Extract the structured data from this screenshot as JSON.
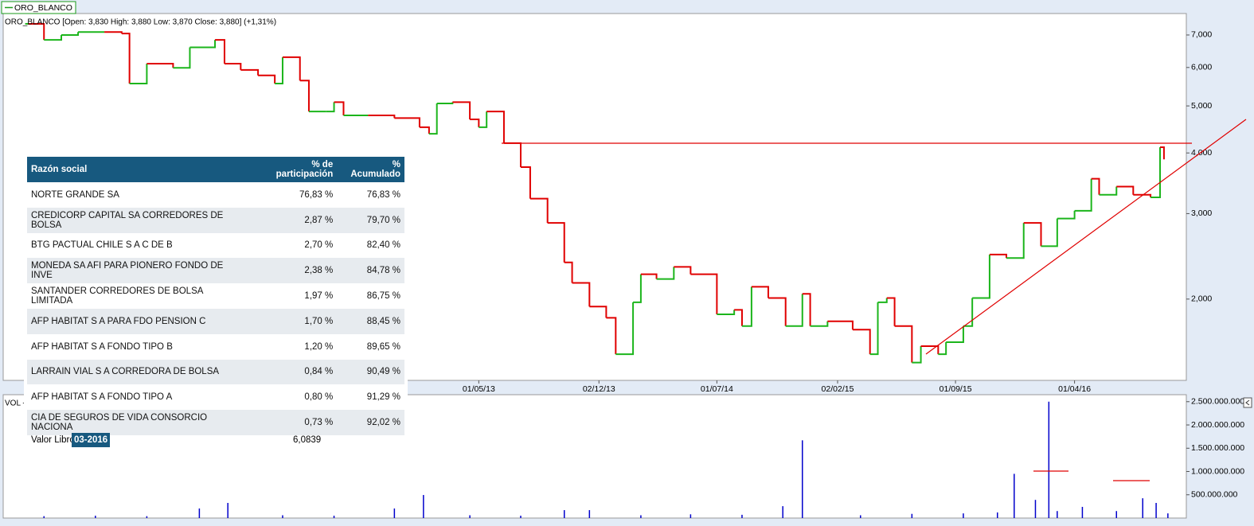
{
  "chart_data": [
    {
      "type": "step",
      "title": "ORO_BLANCO [Open: 3,830  High: 3,880  Low: 3,870  Close: 3,880] (+1,31%)",
      "log_y": true,
      "x": [
        "15/02/11",
        "15/03/11",
        "15/04/11",
        "15/05/11",
        "01/07/11",
        "01/08/11",
        "15/08/11",
        "15/09/11",
        "01/11/11",
        "01/12/11",
        "15/01/12",
        "01/02/12",
        "01/03/12",
        "01/04/12",
        "01/05/12",
        "15/05/12",
        "15/06/12",
        "01/07/12",
        "01/08/12",
        "15/08/12",
        "01/09/12",
        "15/10/12",
        "01/12/12",
        "15/01/13",
        "01/02/13",
        "15/02/13",
        "15/03/13",
        "15/04/13",
        "01/05/13",
        "15/05/13",
        "15/06/13",
        "15/07/13",
        "01/08/13",
        "01/09/13",
        "01/10/13",
        "15/10/13",
        "15/11/13",
        "15/12/13",
        "01/01/14",
        "01/02/14",
        "15/02/14",
        "15/03/14",
        "15/04/14",
        "15/05/14",
        "01/07/14",
        "01/08/14",
        "15/08/14",
        "01/09/14",
        "01/10/14",
        "01/11/14",
        "01/12/14",
        "15/12/14",
        "15/01/15",
        "01/03/15",
        "01/04/15",
        "15/04/15",
        "01/05/15",
        "15/05/15",
        "15/06/15",
        "01/07/15",
        "01/08/15",
        "15/08/15",
        "15/09/15",
        "01/10/15",
        "01/11/15",
        "01/12/15",
        "01/01/16",
        "01/02/16",
        "01/03/16",
        "01/04/16",
        "01/05/16",
        "15/05/16",
        "15/06/16",
        "15/07/16",
        "15/08/16",
        "01/09/16",
        "08/09/16"
      ],
      "series": [
        {
          "name": "ORO_BLANCO",
          "color": "#1cb51c",
          "down_color": "#e00000",
          "values": [
            7.38,
            6.84,
            7.0,
            7.1,
            7.1,
            7.05,
            5.56,
            6.11,
            5.99,
            6.6,
            6.84,
            6.11,
            5.93,
            5.78,
            5.56,
            6.3,
            5.64,
            4.87,
            4.87,
            5.09,
            4.78,
            4.78,
            4.72,
            4.52,
            4.38,
            5.06,
            5.09,
            4.69,
            4.52,
            4.87,
            4.19,
            3.74,
            3.22,
            2.87,
            2.38,
            2.16,
            1.93,
            1.83,
            1.54,
            1.97,
            2.25,
            2.2,
            2.33,
            2.25,
            1.86,
            1.9,
            1.76,
            2.12,
            2.01,
            1.76,
            2.05,
            1.76,
            1.8,
            1.73,
            1.54,
            1.97,
            2.01,
            1.76,
            1.48,
            1.6,
            1.54,
            1.63,
            1.76,
            2.01,
            2.47,
            2.43,
            2.87,
            2.57,
            2.93,
            3.04,
            3.54,
            3.28,
            3.41,
            3.28,
            3.24,
            4.11,
            3.88
          ]
        }
      ],
      "xlim": [
        "01/01/11",
        "18/10/16"
      ],
      "xticks": [
        "01/05/13",
        "02/12/13",
        "01/07/14",
        "02/02/15",
        "01/09/15",
        "01/04/16"
      ],
      "ylim": [
        1.36,
        7.75
      ],
      "yticks": [
        {
          "value": 2,
          "label": "2,000"
        },
        {
          "value": 3,
          "label": "3,000"
        },
        {
          "value": 4,
          "label": "4,000"
        },
        {
          "value": 5,
          "label": "5,000"
        },
        {
          "value": 6,
          "label": "6,000"
        },
        {
          "value": 7,
          "label": "7,000"
        }
      ]
    },
    {
      "type": "bar",
      "title": "VOL -",
      "color": "#0000cc",
      "x": [
        "15/03/11",
        "15/06/11",
        "15/09/11",
        "18/12/11",
        "07/02/12",
        "15/05/12",
        "15/08/12",
        "01/12/12",
        "22/01/13",
        "15/04/13",
        "15/07/13",
        "01/10/13",
        "15/11/13",
        "15/02/14",
        "15/05/14",
        "15/08/14",
        "27/10/14",
        "01/12/14",
        "15/03/15",
        "15/06/15",
        "15/09/15",
        "15/11/15",
        "15/12/15",
        "22/01/16",
        "15/02/16",
        "01/03/16",
        "15/04/16",
        "15/06/16",
        "01/08/16",
        "25/08/16",
        "15/09/16"
      ],
      "values": [
        40000000,
        50000000,
        40000000,
        205000000,
        325000000,
        60000000,
        50000000,
        205000000,
        495000000,
        60000000,
        50000000,
        170000000,
        170000000,
        60000000,
        80000000,
        70000000,
        255000000,
        1670000000,
        60000000,
        90000000,
        100000000,
        120000000,
        950000000,
        390000000,
        2500000000,
        150000000,
        240000000,
        150000000,
        425000000,
        325000000,
        100000000
      ],
      "xlim": [
        "01/01/11",
        "18/10/16"
      ],
      "ylim": [
        0,
        2650000000
      ],
      "yticks": [
        {
          "value": 500000000,
          "label": "500.000.000"
        },
        {
          "value": 1000000000,
          "label": "1.000.000.000"
        },
        {
          "value": 1500000000,
          "label": "1.500.000.000"
        },
        {
          "value": 2000000000,
          "label": "2.000.000.000"
        },
        {
          "value": 2500000000,
          "label": "2.500.000.000"
        }
      ]
    }
  ],
  "table": {
    "columns": [
      "Razón social",
      "% de participación",
      "% Acumulado"
    ],
    "rows": [
      [
        "NORTE GRANDE SA",
        "76,83 %",
        "76,83 %"
      ],
      [
        "CREDICORP CAPITAL SA CORREDORES DE BOLSA",
        "2,87 %",
        "79,70 %"
      ],
      [
        "BTG PACTUAL CHILE S A C DE B",
        "2,70 %",
        "82,40 %"
      ],
      [
        "MONEDA SA AFI PARA PIONERO FONDO DE INVE",
        "2,38 %",
        "84,78 %"
      ],
      [
        "SANTANDER CORREDORES DE BOLSA LIMITADA",
        "1,97 %",
        "86,75 %"
      ],
      [
        "AFP HABITAT S A PARA FDO PENSION C",
        "1,70 %",
        "88,45 %"
      ],
      [
        "AFP HABITAT S A FONDO TIPO B",
        "1,20 %",
        "89,65 %"
      ],
      [
        "LARRAIN VIAL S A CORREDORA DE BOLSA",
        "0,84 %",
        "90,49 %"
      ],
      [
        "AFP HABITAT S A FONDO TIPO A",
        "0,80 %",
        "91,29 %"
      ],
      [
        "CIA DE SEGUROS DE VIDA CONSORCIO NACIONA",
        "0,73 %",
        "92,02 %"
      ]
    ],
    "footer": {
      "label": "Valor Libro",
      "period": "03-2016",
      "value": "6,0839"
    }
  }
}
